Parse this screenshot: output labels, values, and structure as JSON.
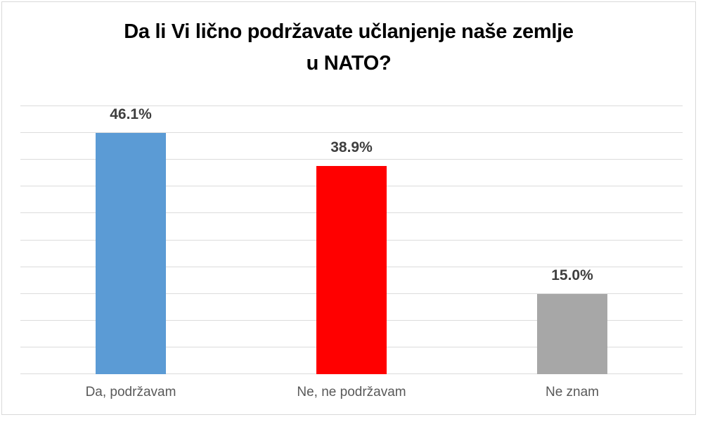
{
  "chart_data": {
    "type": "bar",
    "title": "Da li Vi lično podržavate učlanjenje naše zemlje u NATO?",
    "title_lines": [
      "Da li Vi lično podržavate učlanjenje naše zemlje",
      "u NATO?"
    ],
    "categories": [
      "Da, podržavam",
      "Ne, ne podržavam",
      "Ne znam"
    ],
    "values": [
      46.1,
      38.9,
      15.0
    ],
    "value_labels": [
      "46.1%",
      "38.9%",
      "15.0%"
    ],
    "bar_colors": [
      "#5B9BD5",
      "#FF0000",
      "#A7A7A7"
    ],
    "xlabel": "",
    "ylabel": "",
    "ylim": [
      0,
      50
    ],
    "gridline_step": 5,
    "grid": true,
    "legend_position": "none"
  },
  "theme": {
    "background": "#FFFFFF",
    "frame_border": "#D9D9D9",
    "gridline": "#DCDCDC",
    "title_text": "#000000",
    "value_label_text": "#3F3F3F",
    "category_label_text": "#595959"
  }
}
